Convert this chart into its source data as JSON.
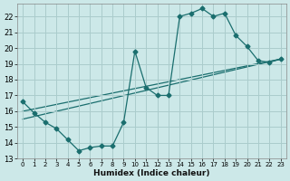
{
  "xlabel": "Humidex (Indice chaleur)",
  "bg_color": "#cce8e8",
  "grid_color": "#aacccc",
  "line_color": "#1a6e6e",
  "xlim": [
    -0.5,
    23.5
  ],
  "ylim": [
    13,
    22.8
  ],
  "yticks": [
    13,
    14,
    15,
    16,
    17,
    18,
    19,
    20,
    21,
    22
  ],
  "xticks": [
    0,
    1,
    2,
    3,
    4,
    5,
    6,
    7,
    8,
    9,
    10,
    11,
    12,
    13,
    14,
    15,
    16,
    17,
    18,
    19,
    20,
    21,
    22,
    23
  ],
  "line1_x": [
    0,
    1,
    2,
    3,
    4,
    5,
    6,
    7,
    8,
    9,
    10,
    11,
    12,
    13,
    14,
    15,
    16,
    17,
    18,
    19,
    20,
    21,
    22,
    23
  ],
  "line1_y": [
    16.6,
    15.9,
    15.3,
    14.9,
    14.2,
    13.5,
    13.7,
    13.8,
    13.8,
    15.3,
    19.8,
    17.5,
    17.0,
    17.0,
    22.0,
    22.2,
    22.5,
    22.0,
    22.2,
    20.8,
    20.1,
    19.2,
    19.1,
    19.3
  ],
  "trend1_x": [
    0,
    23
  ],
  "trend1_y": [
    16.0,
    19.3
  ],
  "trend2_x": [
    0,
    23
  ],
  "trend2_y": [
    15.5,
    19.3
  ],
  "marker": "D",
  "markersize": 2.5,
  "lw": 0.9
}
